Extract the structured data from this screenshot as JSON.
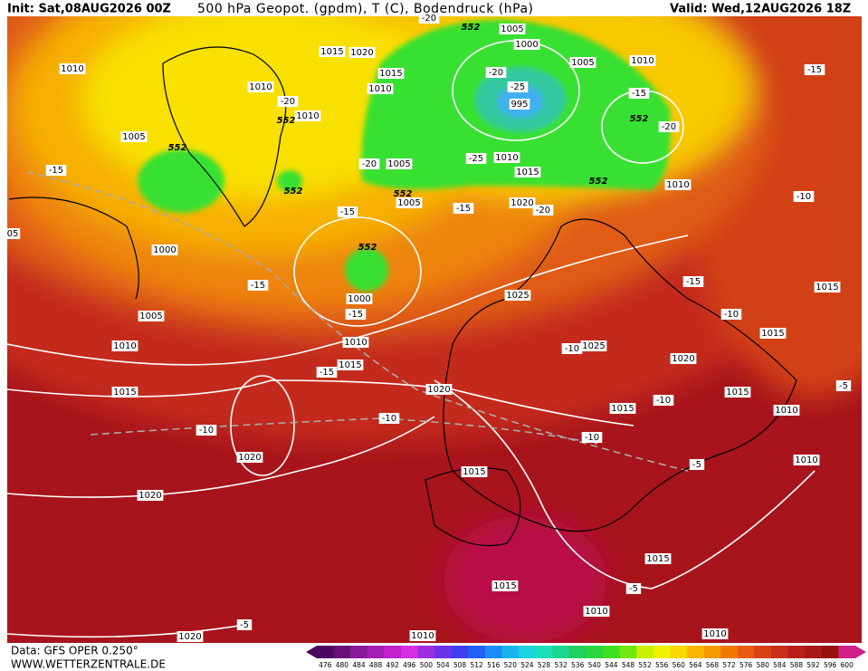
{
  "header": {
    "init": "Init: Sat,08AUG2026 00Z",
    "title": "500 hPa Geopot. (gpdm), T (C), Bodendruck (hPa)",
    "valid": "Valid: Wed,12AUG2026 18Z"
  },
  "footer": {
    "data": "Data: GFS OPER 0.250°",
    "site": "WWW.WETTERZENTRALE.DE"
  },
  "colorbar": {
    "ticks": [
      476,
      480,
      484,
      488,
      492,
      496,
      500,
      504,
      508,
      512,
      516,
      520,
      524,
      528,
      532,
      536,
      540,
      544,
      548,
      552,
      556,
      560,
      564,
      568,
      572,
      576,
      580,
      584,
      588,
      592,
      596,
      600
    ],
    "colors": [
      "#4b0a5e",
      "#6a0f7a",
      "#8a1a9b",
      "#a41fb5",
      "#c020d0",
      "#d62ee0",
      "#9b2fe0",
      "#6a33e6",
      "#3e3ef0",
      "#2060f5",
      "#1a8cf5",
      "#18b4f0",
      "#1ad2e0",
      "#18e0b8",
      "#18d890",
      "#20d060",
      "#28d840",
      "#40e020",
      "#70e810",
      "#c8f000",
      "#f0f000",
      "#f8d800",
      "#f8b800",
      "#f89800",
      "#f07800",
      "#e85a10",
      "#d84018",
      "#c83018",
      "#b82018",
      "#a81818",
      "#981010",
      "#d0208a"
    ]
  },
  "map": {
    "labels": [
      "1010",
      "1010",
      "1015",
      "1020",
      "1015",
      "1010",
      "1010",
      "-20",
      "1005",
      "-15",
      "-20",
      "1005",
      "1005",
      "-15",
      "-15",
      "-25",
      "1010",
      "1015",
      "1020",
      "-20",
      "1005",
      "1000",
      "-20",
      "-25",
      "995",
      "1005",
      "1010",
      "-15",
      "-20",
      "1010",
      "-15",
      "-10",
      "-15",
      "-10",
      "1015",
      "1015",
      "1000",
      "-15",
      "1005",
      "1000",
      "-15",
      "1025",
      "1010",
      "1010",
      "1015",
      "-15",
      "-10",
      "1025",
      "1020",
      "-10",
      "1015",
      "1010",
      "-5",
      "1015",
      "1020",
      "-10",
      "-10",
      "1015",
      "-10",
      "1020",
      "1015",
      "-5",
      "1010",
      "1020",
      "1015",
      "1015",
      "-5",
      "1010",
      "1010",
      "1020",
      "-5",
      "1010",
      "552",
      "552",
      "552",
      "552",
      "552",
      "552",
      "552",
      "552",
      "05",
      "-20"
    ]
  }
}
